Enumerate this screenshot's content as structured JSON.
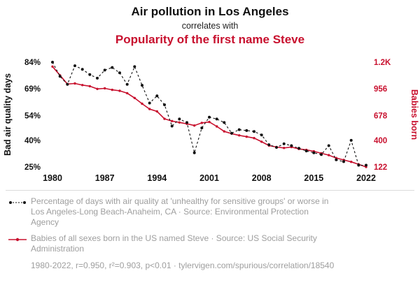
{
  "header": {
    "title": "Air pollution in Los Angeles",
    "subtitle": "correlates with",
    "title2": "Popularity of the first name Steve"
  },
  "colors": {
    "accent_red": "#c8102e",
    "series_black": "#111111",
    "legend_gray": "#9e9e9e"
  },
  "axes": {
    "left_label": "Bad air quality days",
    "right_label": "Babies born",
    "left_ticks": [
      "84%",
      "69%",
      "54%",
      "40%",
      "25%"
    ],
    "right_ticks": [
      "1.2K",
      "956",
      "678",
      "400",
      "122"
    ],
    "x_ticks": [
      1980,
      1987,
      1994,
      2001,
      2008,
      2015,
      2022
    ]
  },
  "chart_data": {
    "type": "line",
    "title": "Air pollution in Los Angeles correlates with Popularity of the first name Steve",
    "x_range": [
      1980,
      2022
    ],
    "left_axis": {
      "label": "Bad air quality days",
      "ticks": [
        84,
        69,
        54,
        40,
        25
      ],
      "unit": "%"
    },
    "right_axis": {
      "label": "Babies born",
      "ticks": [
        1200,
        956,
        678,
        400,
        122
      ]
    },
    "grid": false,
    "legend_position": "below",
    "x": [
      1980,
      1981,
      1982,
      1983,
      1984,
      1985,
      1986,
      1987,
      1988,
      1989,
      1990,
      1991,
      1992,
      1993,
      1994,
      1995,
      1996,
      1997,
      1998,
      1999,
      2000,
      2001,
      2002,
      2003,
      2004,
      2005,
      2006,
      2007,
      2008,
      2009,
      2010,
      2011,
      2012,
      2013,
      2014,
      2015,
      2016,
      2017,
      2018,
      2019,
      2020,
      2021,
      2022
    ],
    "series": [
      {
        "name": "Percentage of bad air quality days (Los Angeles-Long Beach-Anaheim, CA)",
        "axis": "left",
        "color": "#111111",
        "style": "dashed-dotted",
        "values": [
          84,
          76,
          71.5,
          82,
          80,
          77,
          75,
          79.5,
          81,
          78,
          71.5,
          81.5,
          71,
          61,
          65,
          60,
          48,
          52,
          50,
          33,
          47,
          53,
          52,
          50,
          44,
          46,
          45.5,
          45,
          43,
          37.5,
          36,
          38,
          37,
          35.5,
          34,
          33,
          32,
          37,
          29,
          28,
          40,
          26,
          26
        ]
      },
      {
        "name": "Babies of all sexes born in the US named Steve",
        "axis": "right",
        "color": "#c8102e",
        "style": "solid",
        "values": [
          1160,
          1080,
          1000,
          1005,
          990,
          980,
          955,
          960,
          945,
          935,
          910,
          860,
          800,
          745,
          720,
          640,
          615,
          600,
          585,
          565,
          595,
          605,
          555,
          500,
          475,
          455,
          440,
          425,
          385,
          345,
          330,
          320,
          330,
          310,
          300,
          285,
          265,
          245,
          215,
          195,
          175,
          150,
          122
        ]
      }
    ]
  },
  "legend": {
    "series1": "Percentage of days with air quality at 'unhealthy for sensitive groups' or worse in Los Angeles-Long Beach-Anaheim, CA · Source: Environmental Protection Agency",
    "series2": "Babies of all sexes born in the US named Steve · Source: US Social Security Administration"
  },
  "footer": {
    "stats": "1980-2022, r=0.950, r²=0.903, p<0.01 · tylervigen.com/spurious/correlation/18540"
  }
}
